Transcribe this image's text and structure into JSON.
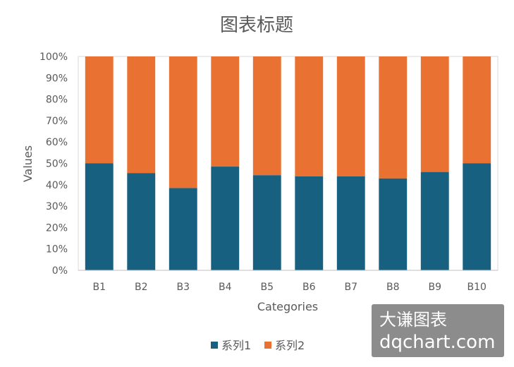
{
  "chart_data": {
    "type": "bar",
    "stacked": true,
    "percent_stacked": true,
    "title": "图表标题",
    "xlabel": "Categories",
    "ylabel": "Values",
    "categories": [
      "B1",
      "B2",
      "B3",
      "B4",
      "B5",
      "B6",
      "B7",
      "B8",
      "B9",
      "B10"
    ],
    "series": [
      {
        "name": "系列1",
        "color": "#17607F",
        "values": [
          50,
          45.5,
          38.5,
          48.5,
          44.5,
          44,
          44,
          43,
          46,
          50
        ]
      },
      {
        "name": "系列2",
        "color": "#E97132",
        "values": [
          50,
          54.5,
          61.5,
          51.5,
          55.5,
          56,
          56,
          57,
          54,
          50
        ]
      }
    ],
    "ylim": [
      0,
      100
    ],
    "yticks": [
      "0%",
      "10%",
      "20%",
      "30%",
      "40%",
      "50%",
      "60%",
      "70%",
      "80%",
      "90%",
      "100%"
    ],
    "grid": false,
    "legend_position": "bottom"
  },
  "watermark": {
    "line1": "大谦图表",
    "line2": "dqchart.com",
    "background": "#8C8C8C"
  }
}
